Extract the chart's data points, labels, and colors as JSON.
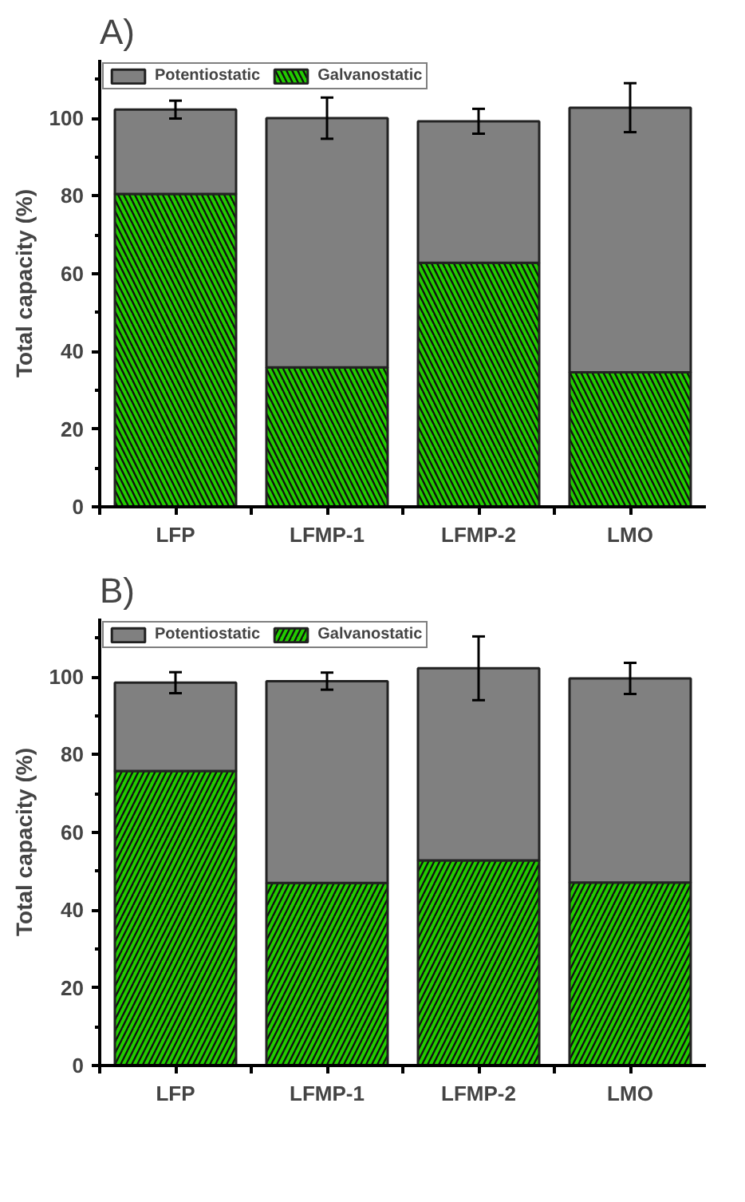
{
  "chart_data": [
    {
      "type": "bar",
      "title": "A)",
      "ylabel": "Total capacity (%)",
      "categories": [
        "LFP",
        "LFMP-1",
        "LFMP-2",
        "LMO"
      ],
      "stacked": true,
      "ylim": [
        0,
        115
      ],
      "yticks": [
        0,
        20,
        40,
        60,
        80,
        100
      ],
      "legend": "top left",
      "grid": false,
      "series": [
        {
          "name": "Galvanostatic",
          "color": "#22cc00",
          "values": [
            80.5,
            35.9,
            62.8,
            34.6
          ]
        },
        {
          "name": "Potentiostatic",
          "color": "#808080",
          "values": [
            21.7,
            64.1,
            36.4,
            68.1
          ],
          "errors": [
            2.3,
            5.3,
            3.2,
            6.3
          ]
        }
      ]
    },
    {
      "type": "bar",
      "title": "B)",
      "ylabel": "Total capacity (%)",
      "categories": [
        "LFP",
        "LFMP-1",
        "LFMP-2",
        "LMO"
      ],
      "stacked": true,
      "ylim": [
        0,
        115
      ],
      "yticks": [
        0,
        20,
        40,
        60,
        80,
        100
      ],
      "legend": "top left",
      "grid": false,
      "series": [
        {
          "name": "Galvanostatic",
          "color": "#22cc00",
          "values": [
            75.8,
            47.0,
            52.8,
            47.1
          ]
        },
        {
          "name": "Potentiostatic",
          "color": "#808080",
          "values": [
            22.7,
            51.9,
            49.4,
            52.5
          ],
          "errors": [
            2.7,
            2.2,
            8.2,
            4.0
          ]
        }
      ]
    }
  ]
}
